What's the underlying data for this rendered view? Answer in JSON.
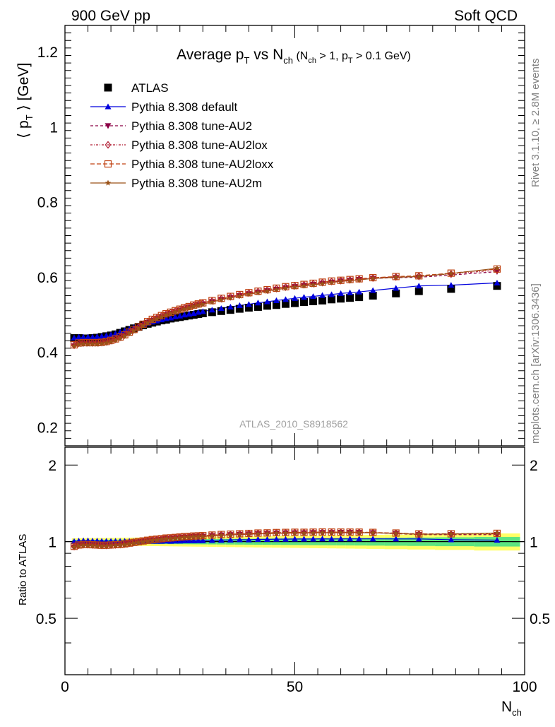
{
  "header": {
    "left": "900 GeV pp",
    "right": "Soft QCD"
  },
  "side_text": {
    "rivet": "Rivet 3.1.10, ≥ 2.8M events",
    "mcplots": "mcplots.cern.ch [arXiv:1306.3436]"
  },
  "title": {
    "main_a": "Average p",
    "main_sub": "T",
    "main_b": " vs N",
    "main_sub2": "ch",
    "cut_a": " (N",
    "cut_sub1": "ch",
    "cut_b": " > 1, p",
    "cut_sub2": "T",
    "cut_c": " > 0.1 GeV)"
  },
  "watermark": "ATLAS_2010_S8918562",
  "ylabel_main": {
    "a": "⟨ p",
    "sub": "T",
    "b": " ⟩  [GeV]"
  },
  "ylabel_ratio": "Ratio to ATLAS",
  "xlabel": {
    "a": "N",
    "sub": "ch"
  },
  "legend": [
    {
      "label": "ATLAS",
      "color": "#000000",
      "marker": "square"
    },
    {
      "label": "Pythia 8.308 default",
      "color": "#0000dd",
      "marker": "triangle"
    },
    {
      "label": "Pythia 8.308 tune-AU2",
      "color": "#8b0045",
      "marker": "triangle-down"
    },
    {
      "label": "Pythia 8.308 tune-AU2lox",
      "color": "#b01a30",
      "marker": "diamond-open"
    },
    {
      "label": "Pythia 8.308 tune-AU2loxx",
      "color": "#c04010",
      "marker": "square-open"
    },
    {
      "label": "Pythia 8.308 tune-AU2m",
      "color": "#9a5218",
      "marker": "star"
    }
  ],
  "chart_data": {
    "type": "scatter",
    "xlim": [
      0,
      100
    ],
    "ylim_main": [
      0.15,
      1.27
    ],
    "ylim_ratio": [
      0.3,
      2.35
    ],
    "ratio_log": true,
    "xticks": [
      "0",
      "50",
      "100"
    ],
    "yticks_main": [
      "0.2",
      "0.4",
      "0.6",
      "0.8",
      "1",
      "1.2"
    ],
    "yticks_ratio": [
      "0.5",
      "1",
      "2"
    ],
    "x": [
      2,
      3,
      4,
      5,
      6,
      7,
      8,
      9,
      10,
      11,
      12,
      13,
      14,
      15,
      16,
      17,
      18,
      19,
      20,
      21,
      22,
      23,
      24,
      25,
      26,
      27,
      28,
      29,
      30,
      32,
      34,
      36,
      38,
      40,
      42,
      44,
      46,
      48,
      50,
      52,
      54,
      56,
      58,
      60,
      62,
      64,
      67,
      72,
      77,
      84,
      94
    ],
    "series": [
      {
        "name": "ATLAS",
        "values": [
          0.437,
          0.437,
          0.436,
          0.436,
          0.437,
          0.438,
          0.44,
          0.442,
          0.444,
          0.447,
          0.451,
          0.455,
          0.459,
          0.463,
          0.467,
          0.471,
          0.475,
          0.478,
          0.481,
          0.484,
          0.486,
          0.489,
          0.491,
          0.493,
          0.495,
          0.497,
          0.499,
          0.501,
          0.503,
          0.506,
          0.509,
          0.512,
          0.515,
          0.518,
          0.52,
          0.523,
          0.525,
          0.528,
          0.53,
          0.533,
          0.535,
          0.537,
          0.54,
          0.542,
          0.544,
          0.546,
          0.55,
          0.556,
          0.562,
          0.568,
          0.576
        ]
      },
      {
        "name": "Pythia 8.308 default",
        "values": [
          0.438,
          0.44,
          0.44,
          0.44,
          0.44,
          0.441,
          0.442,
          0.444,
          0.446,
          0.449,
          0.453,
          0.457,
          0.461,
          0.465,
          0.469,
          0.473,
          0.477,
          0.48,
          0.483,
          0.486,
          0.489,
          0.491,
          0.494,
          0.496,
          0.499,
          0.501,
          0.503,
          0.506,
          0.508,
          0.512,
          0.516,
          0.52,
          0.524,
          0.527,
          0.531,
          0.534,
          0.537,
          0.54,
          0.543,
          0.546,
          0.548,
          0.551,
          0.553,
          0.556,
          0.558,
          0.56,
          0.564,
          0.57,
          0.576,
          0.578,
          0.584
        ]
      },
      {
        "name": "Pythia 8.308 tune-AU2",
        "values": [
          0.416,
          0.421,
          0.422,
          0.422,
          0.422,
          0.422,
          0.423,
          0.425,
          0.428,
          0.432,
          0.437,
          0.443,
          0.45,
          0.457,
          0.464,
          0.471,
          0.478,
          0.484,
          0.489,
          0.494,
          0.499,
          0.503,
          0.507,
          0.511,
          0.515,
          0.518,
          0.522,
          0.525,
          0.528,
          0.534,
          0.54,
          0.545,
          0.55,
          0.555,
          0.559,
          0.563,
          0.567,
          0.571,
          0.574,
          0.577,
          0.58,
          0.583,
          0.586,
          0.589,
          0.591,
          0.593,
          0.596,
          0.598,
          0.599,
          0.605,
          0.614
        ]
      },
      {
        "name": "Pythia 8.308 tune-AU2lox",
        "values": [
          0.418,
          0.423,
          0.424,
          0.424,
          0.424,
          0.424,
          0.425,
          0.427,
          0.43,
          0.434,
          0.439,
          0.445,
          0.452,
          0.459,
          0.466,
          0.473,
          0.48,
          0.486,
          0.491,
          0.496,
          0.501,
          0.505,
          0.509,
          0.513,
          0.517,
          0.52,
          0.524,
          0.527,
          0.53,
          0.536,
          0.542,
          0.547,
          0.552,
          0.557,
          0.561,
          0.565,
          0.569,
          0.573,
          0.576,
          0.579,
          0.582,
          0.585,
          0.588,
          0.59,
          0.592,
          0.594,
          0.597,
          0.6,
          0.602,
          0.608,
          0.618
        ]
      },
      {
        "name": "Pythia 8.308 tune-AU2loxx",
        "values": [
          0.419,
          0.424,
          0.425,
          0.425,
          0.425,
          0.425,
          0.426,
          0.428,
          0.431,
          0.435,
          0.44,
          0.446,
          0.453,
          0.46,
          0.467,
          0.474,
          0.481,
          0.487,
          0.492,
          0.497,
          0.502,
          0.506,
          0.51,
          0.514,
          0.518,
          0.521,
          0.525,
          0.528,
          0.531,
          0.537,
          0.543,
          0.548,
          0.553,
          0.558,
          0.562,
          0.566,
          0.57,
          0.574,
          0.577,
          0.58,
          0.583,
          0.586,
          0.589,
          0.591,
          0.593,
          0.595,
          0.598,
          0.601,
          0.603,
          0.61,
          0.621
        ]
      },
      {
        "name": "Pythia 8.308 tune-AU2m",
        "values": [
          0.416,
          0.42,
          0.421,
          0.421,
          0.421,
          0.421,
          0.422,
          0.424,
          0.427,
          0.431,
          0.436,
          0.442,
          0.449,
          0.456,
          0.463,
          0.47,
          0.477,
          0.483,
          0.488,
          0.493,
          0.498,
          0.502,
          0.506,
          0.51,
          0.514,
          0.517,
          0.521,
          0.524,
          0.527,
          0.533,
          0.539,
          0.544,
          0.549,
          0.554,
          0.558,
          0.562,
          0.566,
          0.57,
          0.573,
          0.576,
          0.579,
          0.582,
          0.585,
          0.588,
          0.59,
          0.592,
          0.596,
          0.599,
          0.601,
          0.609,
          0.623
        ]
      }
    ],
    "ratio_band": {
      "color_inner": "#33dd88",
      "color_outer": "#ffff66"
    }
  }
}
